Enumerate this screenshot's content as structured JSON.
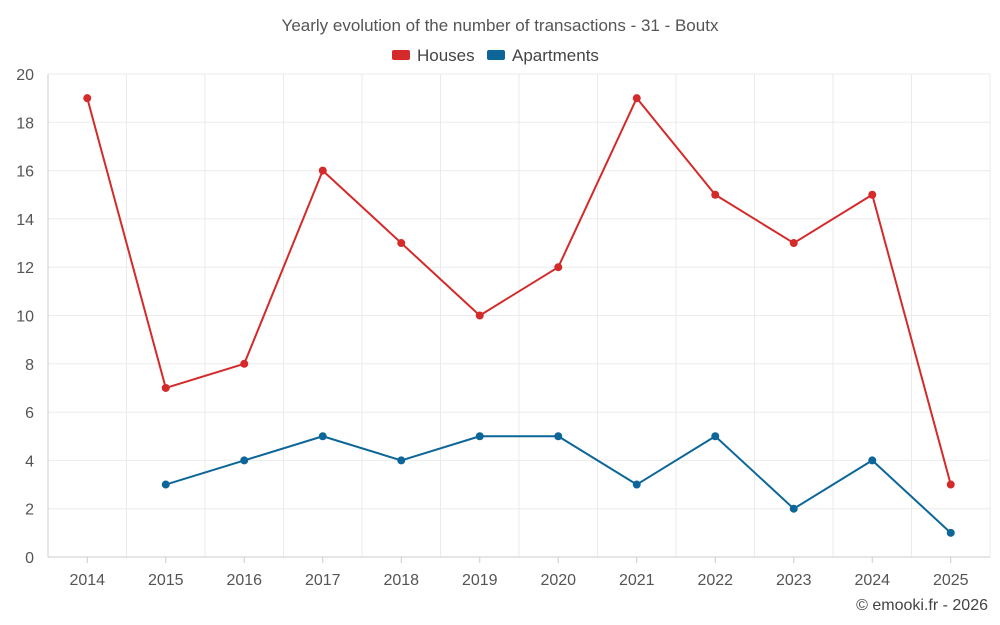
{
  "chart_data": {
    "type": "line",
    "title": "Yearly evolution of the number of transactions - 31 - Boutx",
    "xlabel": "",
    "ylabel": "",
    "categories": [
      "2014",
      "2015",
      "2016",
      "2017",
      "2018",
      "2019",
      "2020",
      "2021",
      "2022",
      "2023",
      "2024",
      "2025"
    ],
    "ylim": [
      0,
      20
    ],
    "yticks": [
      0,
      2,
      4,
      6,
      8,
      10,
      12,
      14,
      16,
      18,
      20
    ],
    "grid": true,
    "legend_position": "top-center",
    "series": [
      {
        "name": "Houses",
        "color": "#d42a2a",
        "values": [
          19,
          7,
          8,
          16,
          13,
          10,
          12,
          19,
          15,
          13,
          15,
          3
        ]
      },
      {
        "name": "Apartments",
        "color": "#0d6699",
        "values": [
          null,
          3,
          4,
          5,
          4,
          5,
          5,
          3,
          5,
          2,
          4,
          1
        ]
      }
    ]
  },
  "credit": "© emooki.fr - 2026"
}
